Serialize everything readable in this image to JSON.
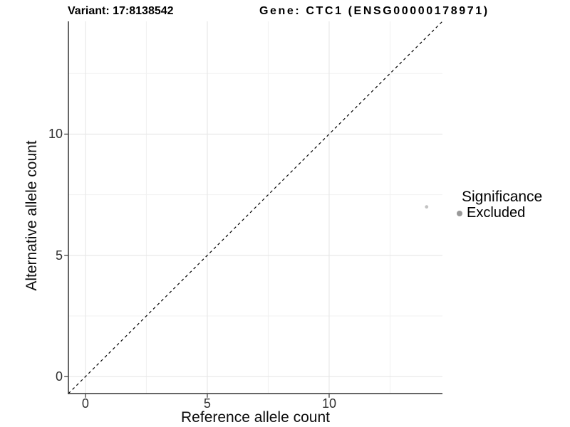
{
  "chart_data": {
    "type": "scatter",
    "titles": {
      "left": "Variant: 17:8138542",
      "right": "Gene: CTC1 (ENSG00000178971)"
    },
    "xlabel": "Reference allele count",
    "ylabel": "Alternative allele count",
    "xlim": [
      -0.7,
      14.65
    ],
    "ylim": [
      -0.7,
      14.65
    ],
    "x_ticks": [
      0,
      5,
      10
    ],
    "y_ticks": [
      0,
      5,
      10
    ],
    "x_minor": [
      2.5,
      7.5,
      12.5
    ],
    "y_minor": [
      2.5,
      7.5,
      12.5
    ],
    "grid": "major+minor",
    "reference_line": {
      "slope": 1,
      "intercept": 0,
      "style": "dashed",
      "color": "#000000"
    },
    "series": [
      {
        "name": "Excluded",
        "color": "#999999",
        "alpha": 0.6,
        "points": [
          {
            "x": 14,
            "y": 7
          }
        ]
      }
    ],
    "legend": {
      "title": "Significance",
      "position": "right",
      "items": [
        {
          "label": "Excluded",
          "color": "#999999"
        }
      ]
    }
  },
  "style": {
    "grid_major": "#e6e6e6",
    "grid_minor": "#f1f1f1",
    "axis_line": "#333333",
    "tick_mark": "#333333",
    "point_outline": "none"
  }
}
